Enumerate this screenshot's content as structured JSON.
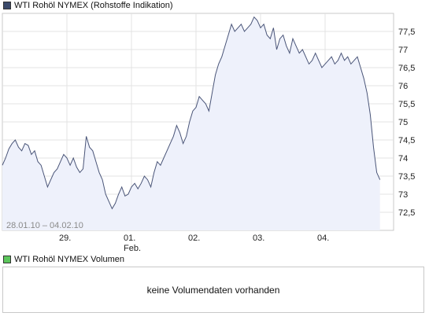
{
  "legend_price": {
    "label": "WTI Rohöl NYMEX (Rohstoffe Indikation)",
    "color": "#3b4a6b"
  },
  "legend_volume": {
    "label": "WTI Rohöl NYMEX Volumen",
    "color": "#5cc65c"
  },
  "volume_message": "keine Volumendaten vorhanden",
  "chart_data": {
    "type": "area",
    "date_range": "28.01.10 – 04.02.10",
    "ylim": [
      72,
      78
    ],
    "y_ticks": [
      "72,5",
      "73",
      "73,5",
      "74",
      "74,5",
      "75",
      "75,5",
      "76",
      "76,5",
      "77",
      "77,5"
    ],
    "x_ticks": [
      {
        "day": 1,
        "label": "29.",
        "sub": ""
      },
      {
        "day": 2,
        "label": "01.",
        "sub": "Feb."
      },
      {
        "day": 3,
        "label": "02.",
        "sub": ""
      },
      {
        "day": 4,
        "label": "03.",
        "sub": ""
      },
      {
        "day": 5,
        "label": "04.",
        "sub": ""
      }
    ],
    "line_color": "#4a5578",
    "fill_color": "#eef1fb",
    "grid": true,
    "series": [
      {
        "x": [
          0,
          0.05,
          0.1,
          0.15,
          0.2,
          0.25,
          0.3,
          0.35,
          0.4,
          0.45,
          0.5,
          0.55,
          0.6,
          0.65,
          0.7,
          0.75,
          0.8,
          0.85,
          0.9,
          0.95,
          1.0,
          1.05,
          1.1,
          1.15,
          1.2,
          1.25,
          1.3,
          1.35,
          1.4,
          1.45,
          1.5,
          1.55,
          1.6,
          1.65,
          1.7,
          1.75,
          1.8,
          1.85,
          1.9,
          1.95,
          2.0,
          2.05,
          2.1,
          2.15,
          2.2,
          2.25,
          2.3,
          2.35,
          2.4,
          2.45,
          2.5,
          2.55,
          2.6,
          2.65,
          2.7,
          2.75,
          2.8,
          2.85,
          2.9,
          2.95,
          3.0,
          3.05,
          3.1,
          3.15,
          3.2,
          3.25,
          3.3,
          3.35,
          3.4,
          3.45,
          3.5,
          3.55,
          3.6,
          3.65,
          3.7,
          3.75,
          3.8,
          3.85,
          3.9,
          3.95,
          4.0,
          4.05,
          4.1,
          4.15,
          4.2,
          4.25,
          4.3,
          4.35,
          4.4,
          4.45,
          4.5,
          4.55,
          4.6,
          4.65,
          4.7,
          4.75,
          4.8,
          4.85,
          4.9,
          4.95,
          5.0,
          5.05,
          5.1,
          5.15,
          5.2,
          5.25,
          5.3,
          5.35,
          5.4,
          5.45,
          5.5,
          5.55,
          5.6,
          5.65,
          5.7,
          5.75,
          5.8,
          5.85
        ],
        "y": [
          73.8,
          74.0,
          74.25,
          74.4,
          74.5,
          74.3,
          74.2,
          74.4,
          74.35,
          74.1,
          74.2,
          73.9,
          73.8,
          73.5,
          73.2,
          73.4,
          73.6,
          73.7,
          73.9,
          74.1,
          74.0,
          73.8,
          74.0,
          73.75,
          73.6,
          73.7,
          74.6,
          74.3,
          74.2,
          73.9,
          73.6,
          73.4,
          73.0,
          72.8,
          72.6,
          72.75,
          73.0,
          73.2,
          72.95,
          73.0,
          73.2,
          73.3,
          73.15,
          73.3,
          73.5,
          73.4,
          73.2,
          73.6,
          73.9,
          73.8,
          74.0,
          74.2,
          74.4,
          74.6,
          74.9,
          74.7,
          74.4,
          74.6,
          75.0,
          75.3,
          75.4,
          75.7,
          75.6,
          75.5,
          75.3,
          75.8,
          76.3,
          76.6,
          76.8,
          77.1,
          77.4,
          77.7,
          77.5,
          77.6,
          77.7,
          77.5,
          77.6,
          77.7,
          77.9,
          77.8,
          77.6,
          77.7,
          77.4,
          77.3,
          77.6,
          77.0,
          77.3,
          77.4,
          77.1,
          76.9,
          77.3,
          77.1,
          76.9,
          77.0,
          76.8,
          76.6,
          76.7,
          76.9,
          76.7,
          76.5,
          76.6,
          76.7,
          76.8,
          76.6,
          76.7,
          76.9,
          76.7,
          76.8,
          76.6,
          76.7,
          76.8,
          76.5,
          76.2,
          75.8,
          75.2,
          74.3,
          73.6,
          73.4
        ]
      }
    ]
  }
}
